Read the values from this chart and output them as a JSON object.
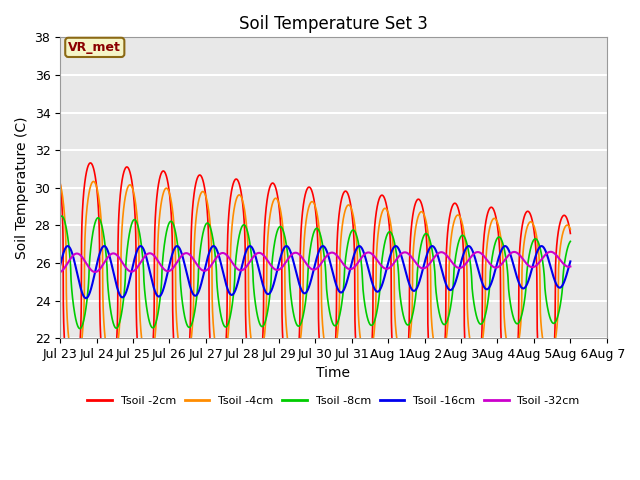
{
  "title": "Soil Temperature Set 3",
  "xlabel": "Time",
  "ylabel": "Soil Temperature (C)",
  "ylim": [
    22,
    38
  ],
  "xlim": [
    0,
    336
  ],
  "background_color": "#e8e8e8",
  "grid_color": "white",
  "annotation_text": "VR_met",
  "annotation_bg": "#f5f5c8",
  "annotation_border": "#8b6914",
  "x_tick_labels": [
    "Jul 23",
    "Jul 24",
    "Jul 25",
    "Jul 26",
    "Jul 27",
    "Jul 28",
    "Jul 29",
    "Jul 30",
    "Jul 31",
    "Aug 1",
    "Aug 2",
    "Aug 3",
    "Aug 4",
    "Aug 5",
    "Aug 6",
    "Aug 7"
  ],
  "x_tick_positions": [
    0,
    24,
    48,
    72,
    96,
    120,
    144,
    168,
    192,
    216,
    240,
    264,
    288,
    312,
    336,
    360
  ],
  "colors": {
    "Tsoil -2cm": "#ff0000",
    "Tsoil -4cm": "#ff8c00",
    "Tsoil -8cm": "#00cc00",
    "Tsoil -16cm": "#0000ee",
    "Tsoil -32cm": "#cc00cc"
  },
  "period_hours": 24,
  "total_hours": 336,
  "series": {
    "Tsoil -2cm": {
      "base": 25.5,
      "amplitude_start": 6.0,
      "amplitude_end": 4.5,
      "mean_drift": -1.5,
      "phase_shift": 0.0,
      "sharpness": 3.0
    },
    "Tsoil -4cm": {
      "base": 25.5,
      "amplitude_start": 5.0,
      "amplitude_end": 3.5,
      "mean_drift": -1.0,
      "phase_shift": 2.0,
      "sharpness": 2.5
    },
    "Tsoil -8cm": {
      "base": 25.5,
      "amplitude_start": 3.0,
      "amplitude_end": 2.2,
      "mean_drift": -0.5,
      "phase_shift": 5.0,
      "sharpness": 1.5
    },
    "Tsoil -16cm": {
      "base": 25.5,
      "amplitude_start": 1.4,
      "amplitude_end": 1.1,
      "mean_drift": 0.3,
      "phase_shift": 9.0,
      "sharpness": 1.0
    },
    "Tsoil -32cm": {
      "base": 26.0,
      "amplitude_start": 0.5,
      "amplitude_end": 0.4,
      "mean_drift": 0.2,
      "phase_shift": 15.0,
      "sharpness": 1.0
    }
  }
}
